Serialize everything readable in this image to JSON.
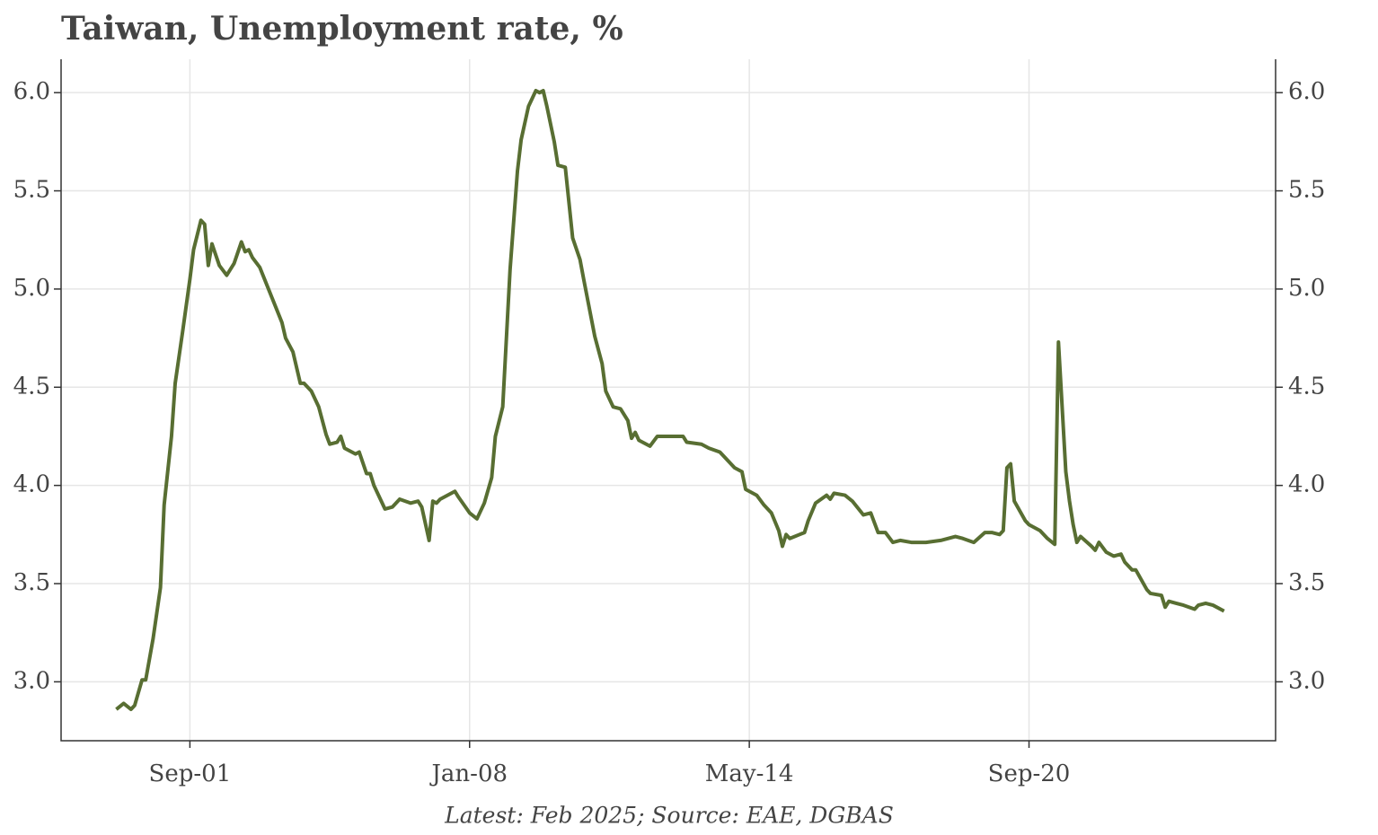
{
  "chart_data": {
    "type": "line",
    "title": "Taiwan, Unemployment rate, %",
    "note": "Latest: Feb 2025; Source: EAE, DGBAS",
    "grid": true,
    "xlim": [
      "1998-10",
      "2026-04"
    ],
    "xticks": [
      {
        "value": "2001-09",
        "label": "Sep-01"
      },
      {
        "value": "2008-01",
        "label": "Jan-08"
      },
      {
        "value": "2014-05",
        "label": "May-14"
      },
      {
        "value": "2020-09",
        "label": "Sep-20"
      }
    ],
    "ylim": [
      2.7,
      6.17
    ],
    "yticks": [
      {
        "value": 3,
        "label": "3.0"
      },
      3.5,
      {
        "value": 4,
        "label": "4.0"
      },
      4.5,
      {
        "value": 5,
        "label": "5.0"
      },
      5.5,
      {
        "value": 6,
        "label": "6.0"
      }
    ],
    "x": [
      "2000-01",
      "2000-03",
      "2000-05",
      "2000-06",
      "2000-08",
      "2000-09",
      "2000-11",
      "2001-01",
      "2001-02",
      "2001-04",
      "2001-05",
      "2001-07",
      "2001-09",
      "2001-10",
      "2001-12",
      "2002-01",
      "2002-02",
      "2002-03",
      "2002-05",
      "2002-07",
      "2002-09",
      "2002-11",
      "2002-12",
      "2003-01",
      "2003-02",
      "2003-04",
      "2003-07",
      "2003-10",
      "2003-11",
      "2004-01",
      "2004-03",
      "2004-04",
      "2004-06",
      "2004-08",
      "2004-10",
      "2004-11",
      "2005-01",
      "2005-02",
      "2005-03",
      "2005-06",
      "2005-07",
      "2005-09",
      "2005-10",
      "2005-11",
      "2006-02",
      "2006-04",
      "2006-06",
      "2006-09",
      "2006-11",
      "2006-12",
      "2007-02",
      "2007-03",
      "2007-04",
      "2007-05",
      "2007-09",
      "2007-10",
      "2008-01",
      "2008-03",
      "2008-05",
      "2008-07",
      "2008-08",
      "2008-10",
      "2008-11",
      "2008-12",
      "2009-02",
      "2009-03",
      "2009-05",
      "2009-07",
      "2009-08",
      "2009-09",
      "2009-10",
      "2009-12",
      "2010-01",
      "2010-03",
      "2010-05",
      "2010-07",
      "2010-08",
      "2010-11",
      "2011-01",
      "2011-02",
      "2011-04",
      "2011-06",
      "2011-08",
      "2011-09",
      "2011-10",
      "2011-11",
      "2012-02",
      "2012-04",
      "2012-07",
      "2012-11",
      "2012-12",
      "2013-04",
      "2013-06",
      "2013-09",
      "2013-11",
      "2014-01",
      "2014-03",
      "2014-04",
      "2014-07",
      "2014-09",
      "2014-11",
      "2015-01",
      "2015-02",
      "2015-03",
      "2015-04",
      "2015-08",
      "2015-09",
      "2015-11",
      "2016-02",
      "2016-03",
      "2016-04",
      "2016-07",
      "2016-09",
      "2016-12",
      "2017-02",
      "2017-04",
      "2017-06",
      "2017-08",
      "2017-10",
      "2018-01",
      "2018-05",
      "2018-09",
      "2019-01",
      "2019-03",
      "2019-06",
      "2019-09",
      "2019-11",
      "2020-01",
      "2020-02",
      "2020-03",
      "2020-04",
      "2020-05",
      "2020-08",
      "2020-09",
      "2020-12",
      "2021-02",
      "2021-04",
      "2021-05",
      "2021-07",
      "2021-08",
      "2021-09",
      "2021-10",
      "2021-11",
      "2022-02",
      "2022-03",
      "2022-04",
      "2022-06",
      "2022-08",
      "2022-10",
      "2022-11",
      "2023-01",
      "2023-02",
      "2023-05",
      "2023-06",
      "2023-09",
      "2023-10",
      "2023-11",
      "2024-01",
      "2024-03",
      "2024-06",
      "2024-07",
      "2024-09",
      "2024-11",
      "2025-02"
    ],
    "series": [
      {
        "color": "#586e32",
        "values": [
          2.86,
          2.89,
          2.86,
          2.88,
          3.01,
          3.01,
          3.22,
          3.48,
          3.9,
          4.25,
          4.52,
          4.78,
          5.05,
          5.2,
          5.35,
          5.33,
          5.12,
          5.23,
          5.12,
          5.07,
          5.13,
          5.24,
          5.19,
          5.2,
          5.16,
          5.11,
          4.97,
          4.83,
          4.75,
          4.68,
          4.52,
          4.52,
          4.48,
          4.4,
          4.26,
          4.21,
          4.22,
          4.25,
          4.19,
          4.16,
          4.17,
          4.06,
          4.06,
          4.0,
          3.88,
          3.89,
          3.93,
          3.91,
          3.92,
          3.89,
          3.72,
          3.92,
          3.91,
          3.93,
          3.97,
          3.94,
          3.86,
          3.83,
          3.91,
          4.04,
          4.25,
          4.4,
          4.75,
          5.1,
          5.6,
          5.76,
          5.93,
          6.01,
          6.0,
          6.01,
          5.93,
          5.75,
          5.63,
          5.62,
          5.26,
          5.15,
          5.05,
          4.76,
          4.62,
          4.48,
          4.4,
          4.39,
          4.33,
          4.24,
          4.27,
          4.23,
          4.2,
          4.25,
          4.25,
          4.25,
          4.22,
          4.21,
          4.19,
          4.17,
          4.13,
          4.09,
          4.07,
          3.98,
          3.95,
          3.9,
          3.86,
          3.77,
          3.69,
          3.75,
          3.73,
          3.76,
          3.82,
          3.91,
          3.95,
          3.93,
          3.96,
          3.95,
          3.92,
          3.85,
          3.86,
          3.76,
          3.76,
          3.71,
          3.72,
          3.71,
          3.71,
          3.72,
          3.74,
          3.73,
          3.71,
          3.76,
          3.76,
          3.75,
          3.77,
          4.09,
          4.11,
          3.92,
          3.82,
          3.8,
          3.77,
          3.73,
          3.7,
          4.73,
          4.07,
          3.92,
          3.8,
          3.71,
          3.74,
          3.69,
          3.67,
          3.71,
          3.66,
          3.64,
          3.65,
          3.61,
          3.57,
          3.57,
          3.47,
          3.45,
          3.44,
          3.38,
          3.41,
          3.4,
          3.39,
          3.37,
          3.39,
          3.4,
          3.39,
          3.36
        ]
      }
    ]
  }
}
